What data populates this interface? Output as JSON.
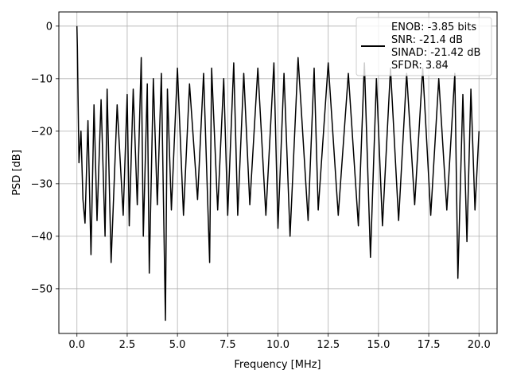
{
  "chart_data": {
    "type": "line",
    "title": "",
    "xlabel": "Frequency [MHz]",
    "ylabel": "PSD [dB]",
    "xlim": [
      -0.9,
      20.9
    ],
    "ylim": [
      -58.5,
      2.7
    ],
    "xticks": [
      0.0,
      2.5,
      5.0,
      7.5,
      10.0,
      12.5,
      15.0,
      17.5,
      20.0
    ],
    "xtick_labels": [
      "0.0",
      "2.5",
      "5.0",
      "7.5",
      "10.0",
      "12.5",
      "15.0",
      "17.5",
      "20.0"
    ],
    "yticks": [
      0,
      -10,
      -20,
      -30,
      -40,
      -50
    ],
    "ytick_labels": [
      "0",
      "−10",
      "−20",
      "−30",
      "−40",
      "−50"
    ],
    "grid": true,
    "legend_position": "top-right",
    "series": [
      {
        "color": "#000000",
        "x": [
          0.0,
          0.02,
          0.05,
          0.1,
          0.2,
          0.3,
          0.4,
          0.55,
          0.7,
          0.85,
          1.0,
          1.2,
          1.4,
          1.5,
          1.7,
          2.0,
          2.3,
          2.5,
          2.6,
          2.8,
          3.0,
          3.2,
          3.3,
          3.5,
          3.6,
          3.8,
          4.0,
          4.2,
          4.4,
          4.5,
          4.7,
          5.0,
          5.3,
          5.6,
          6.0,
          6.3,
          6.6,
          6.7,
          7.0,
          7.3,
          7.5,
          7.8,
          8.0,
          8.3,
          8.6,
          9.0,
          9.4,
          9.8,
          10.0,
          10.3,
          10.6,
          11.0,
          11.5,
          11.8,
          12.0,
          12.5,
          13.0,
          13.5,
          14.0,
          14.3,
          14.6,
          14.9,
          15.2,
          15.6,
          16.0,
          16.4,
          16.8,
          17.2,
          17.6,
          18.0,
          18.4,
          18.8,
          18.95,
          19.2,
          19.4,
          19.6,
          19.8,
          20.0
        ],
        "y": [
          0.0,
          -4.0,
          -12.0,
          -26.0,
          -20.0,
          -33.0,
          -37.5,
          -18.0,
          -43.5,
          -15.0,
          -37.0,
          -14.0,
          -40.0,
          -12.0,
          -45.0,
          -15.0,
          -36.0,
          -13.0,
          -38.0,
          -12.0,
          -34.0,
          -6.0,
          -40.0,
          -11.0,
          -47.0,
          -10.0,
          -34.0,
          -9.0,
          -56.0,
          -12.0,
          -35.0,
          -8.0,
          -36.0,
          -11.0,
          -33.0,
          -9.0,
          -45.0,
          -8.0,
          -35.0,
          -10.0,
          -36.0,
          -7.0,
          -36.0,
          -9.0,
          -34.0,
          -8.0,
          -36.0,
          -7.0,
          -38.5,
          -9.0,
          -40.0,
          -6.0,
          -37.0,
          -8.0,
          -35.0,
          -7.0,
          -36.0,
          -9.0,
          -38.0,
          -7.0,
          -44.0,
          -10.0,
          -38.0,
          -8.0,
          -37.0,
          -9.0,
          -34.0,
          -8.0,
          -36.0,
          -10.0,
          -35.0,
          -9.0,
          -48.0,
          -13.0,
          -41.0,
          -12.0,
          -35.0,
          -20.0
        ]
      }
    ],
    "legend_lines": [
      "ENOB: -3.85 bits",
      "SNR: -21.4 dB",
      "SINAD: -21.42 dB",
      "SFDR: 3.84"
    ]
  }
}
